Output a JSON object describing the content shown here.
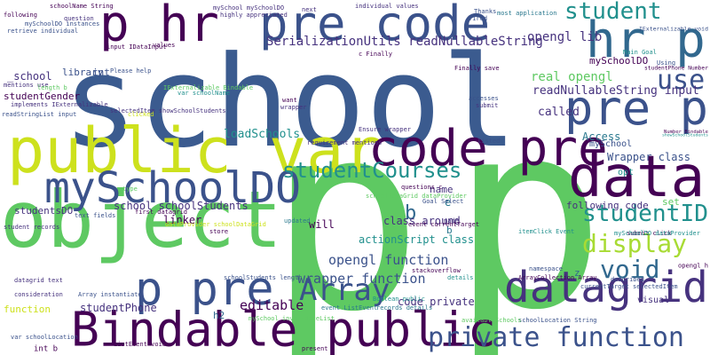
{
  "words": [
    {
      "text": "school",
      "color": "#3b5b8f"
    },
    {
      "text": "p",
      "color": "#5ec962"
    },
    {
      "text": "p",
      "color": "#5ec962"
    },
    {
      "text": "object",
      "color": "#5ec962"
    },
    {
      "text": "public var",
      "color": "#cde11d"
    },
    {
      "text": "datagrid",
      "color": "#46327e"
    },
    {
      "text": "Bindable public",
      "color": "#440154"
    },
    {
      "text": "code pre",
      "color": "#440154"
    },
    {
      "text": "pre code",
      "color": "#3b528b"
    },
    {
      "text": "p hr",
      "color": "#440154"
    },
    {
      "text": "hr p",
      "color": "#31688e"
    },
    {
      "text": "pre p",
      "color": "#3b528b"
    },
    {
      "text": "mySchoolDO",
      "color": "#3b528b"
    },
    {
      "text": "data",
      "color": "#440154"
    },
    {
      "text": "p pre",
      "color": "#3b528b"
    },
    {
      "text": "studentID",
      "color": "#21908d"
    },
    {
      "text": "private function",
      "color": "#3b528b"
    },
    {
      "text": "studentCourses",
      "color": "#21908d"
    },
    {
      "text": "Array",
      "color": "#3b528b"
    },
    {
      "text": "student",
      "color": "#21908d"
    },
    {
      "text": "display",
      "color": "#a8db34"
    },
    {
      "text": "void",
      "color": "#31688e"
    },
    {
      "text": "use",
      "color": "#3b528b"
    },
    {
      "text": "editable",
      "color": "#440154"
    },
    {
      "text": "wrapper function",
      "color": "#3b528b"
    },
    {
      "text": "opengl function",
      "color": "#3b528b"
    },
    {
      "text": "SerializationUtils readNullableString",
      "color": "#46327e"
    },
    {
      "text": "readNullableString input",
      "color": "#46327e"
    },
    {
      "text": "real opengl",
      "color": "#5ec962"
    },
    {
      "text": "actionScript class",
      "color": "#21908d"
    },
    {
      "text": "loadSchools",
      "color": "#21908d"
    },
    {
      "text": "school schoolStudents",
      "color": "#46327e"
    },
    {
      "text": "studentPhone",
      "color": "#46327e"
    },
    {
      "text": "studentGender",
      "color": "#440154"
    },
    {
      "text": "studentsDO",
      "color": "#46327e"
    },
    {
      "text": "b",
      "color": "#31688e"
    },
    {
      "text": "b",
      "color": "#2a788e"
    },
    {
      "text": "opengl lib",
      "color": "#46327e"
    },
    {
      "text": "called",
      "color": "#46327e"
    },
    {
      "text": "Access",
      "color": "#2a788e"
    },
    {
      "text": "Wrapper class",
      "color": "#3b528b"
    },
    {
      "text": "following code",
      "color": "#46327e"
    },
    {
      "text": "code private",
      "color": "#46327e"
    },
    {
      "text": "mySchool",
      "color": "#3b528b"
    },
    {
      "text": "_school",
      "color": "#46327e"
    },
    {
      "text": "library",
      "color": "#3b528b"
    },
    {
      "text": "function",
      "color": "#cde11d"
    },
    {
      "text": "linker",
      "color": "#440154"
    },
    {
      "text": "class around",
      "color": "#46327e"
    },
    {
      "text": "will",
      "color": "#440154"
    },
    {
      "text": "e",
      "color": "#2a788e"
    },
    {
      "text": "name",
      "color": "#46327e"
    },
    {
      "text": "h2",
      "color": "#31688e"
    },
    {
      "text": "int b",
      "color": "#440154"
    },
    {
      "text": "int",
      "color": "#3b528b"
    },
    {
      "text": "set",
      "color": "#5ec962"
    },
    {
      "text": "z",
      "color": "#31688e"
    },
    {
      "text": "mySchoolDO",
      "color": "#440154"
    },
    {
      "text": "opt",
      "color": "#21908d"
    },
    {
      "text": "visual",
      "color": "#46327e"
    },
    {
      "text": "opengl h",
      "color": "#440154"
    },
    {
      "text": "mySchoolDO instances",
      "color": "#3b528b"
    },
    {
      "text": "retrieve individual",
      "color": "#3b528b"
    },
    {
      "text": "mentions use",
      "color": "#46327e"
    },
    {
      "text": "implements IExternalizable",
      "color": "#46327e"
    },
    {
      "text": "readStringList input",
      "color": "#3b528b"
    },
    {
      "text": "following",
      "color": "#440154"
    },
    {
      "text": "schoolName String",
      "color": "#440154"
    },
    {
      "text": "IExternalizable Bindable",
      "color": "#5ec962"
    },
    {
      "text": "selectedItem showSchoolStudents",
      "color": "#46327e"
    },
    {
      "text": "highly appreciated",
      "color": "#46327e"
    },
    {
      "text": "mySchool mySchoolDO",
      "color": "#46327e"
    },
    {
      "text": "next",
      "color": "#46327e"
    },
    {
      "text": "individual values",
      "color": "#46327e"
    },
    {
      "text": "fired",
      "color": "#3b528b"
    },
    {
      "text": "most application",
      "color": "#2a788e"
    },
    {
      "text": "Finally save",
      "color": "#440154"
    },
    {
      "text": "c Finally",
      "color": "#440154"
    },
    {
      "text": "Please help",
      "color": "#3b528b"
    },
    {
      "text": "accesses",
      "color": "#3b528b"
    },
    {
      "text": "submit",
      "color": "#46327e"
    },
    {
      "text": "Ensure wrapper",
      "color": "#46327e"
    },
    {
      "text": "requirement mentions",
      "color": "#46327e"
    },
    {
      "text": "text fields",
      "color": "#3b528b"
    },
    {
      "text": "first datagrid",
      "color": "#440154"
    },
    {
      "text": "Goal Select",
      "color": "#3b528b"
    },
    {
      "text": "event currentTarget",
      "color": "#440154"
    },
    {
      "text": "updated",
      "color": "#2a788e"
    },
    {
      "text": "store",
      "color": "#440154"
    },
    {
      "text": "student records",
      "color": "#46327e"
    },
    {
      "text": "datagrid text",
      "color": "#46327e"
    },
    {
      "text": "consideration",
      "color": "#46327e"
    },
    {
      "text": "Array instantiate",
      "color": "#3b528b"
    },
    {
      "text": "var schoolLocation",
      "color": "#3b528b"
    },
    {
      "text": "stackoverflow",
      "color": "#440154"
    },
    {
      "text": "ArrayCollection Array",
      "color": "#440154"
    },
    {
      "text": "itemClick Event",
      "color": "#21908d"
    },
    {
      "text": "details",
      "color": "#21908d"
    },
    {
      "text": "Boolean public",
      "color": "#21908d"
    },
    {
      "text": "records details",
      "color": "#2a788e"
    },
    {
      "text": "event ListEvent",
      "color": "#2a788e"
    },
    {
      "text": "ListEvent void",
      "color": "#440154"
    },
    {
      "text": "present",
      "color": "#440154"
    },
    {
      "text": "schoolLocation String",
      "color": "#3b528b"
    },
    {
      "text": "availableSchools",
      "color": "#5ec962"
    },
    {
      "text": "namespace",
      "color": "#3b528b"
    },
    {
      "text": "described",
      "color": "#3b528b"
    },
    {
      "text": "currentTarget selectedItem",
      "color": "#3b528b"
    },
    {
      "text": "submit click",
      "color": "#440154"
    },
    {
      "text": "showSchoolStudents",
      "color": "#21908d"
    },
    {
      "text": "Using",
      "color": "#3b528b"
    },
    {
      "text": "studentPhone Number",
      "color": "#440154"
    },
    {
      "text": "Main Goal",
      "color": "#21908d"
    },
    {
      "text": "input IDataInput",
      "color": "#440154"
    },
    {
      "text": "values",
      "color": "#440154"
    },
    {
      "text": "length b",
      "color": "#5ec962"
    },
    {
      "text": "type",
      "color": "#5ec962"
    },
    {
      "text": "clicked",
      "color": "#cde11d"
    },
    {
      "text": "question",
      "color": "#46327e"
    },
    {
      "text": "wrapper",
      "color": "#46327e"
    },
    {
      "text": "want",
      "color": "#440154"
    },
    {
      "text": "var schoolName",
      "color": "#21908d"
    },
    {
      "text": "listed",
      "color": "#3b528b"
    },
    {
      "text": "Number Bindable",
      "color": "#440154"
    },
    {
      "text": "Thanks",
      "color": "#3b528b"
    },
    {
      "text": "made",
      "color": "#46327e"
    },
    {
      "text": "IExternalizable void",
      "color": "#3b528b"
    },
    {
      "text": "questions c",
      "color": "#440154"
    },
    {
      "text": "mySchoolDO dataProvider",
      "color": "#21908d"
    },
    {
      "text": "dataProvider schoolDataGrid",
      "color": "#cde11d"
    },
    {
      "text": "schoolDataGrid dataProvider",
      "color": "#5ec962"
    },
    {
      "text": "mySchool invalidateList",
      "color": "#5ec962"
    },
    {
      "text": "schoolStudents length",
      "color": "#3b528b"
    }
  ]
}
